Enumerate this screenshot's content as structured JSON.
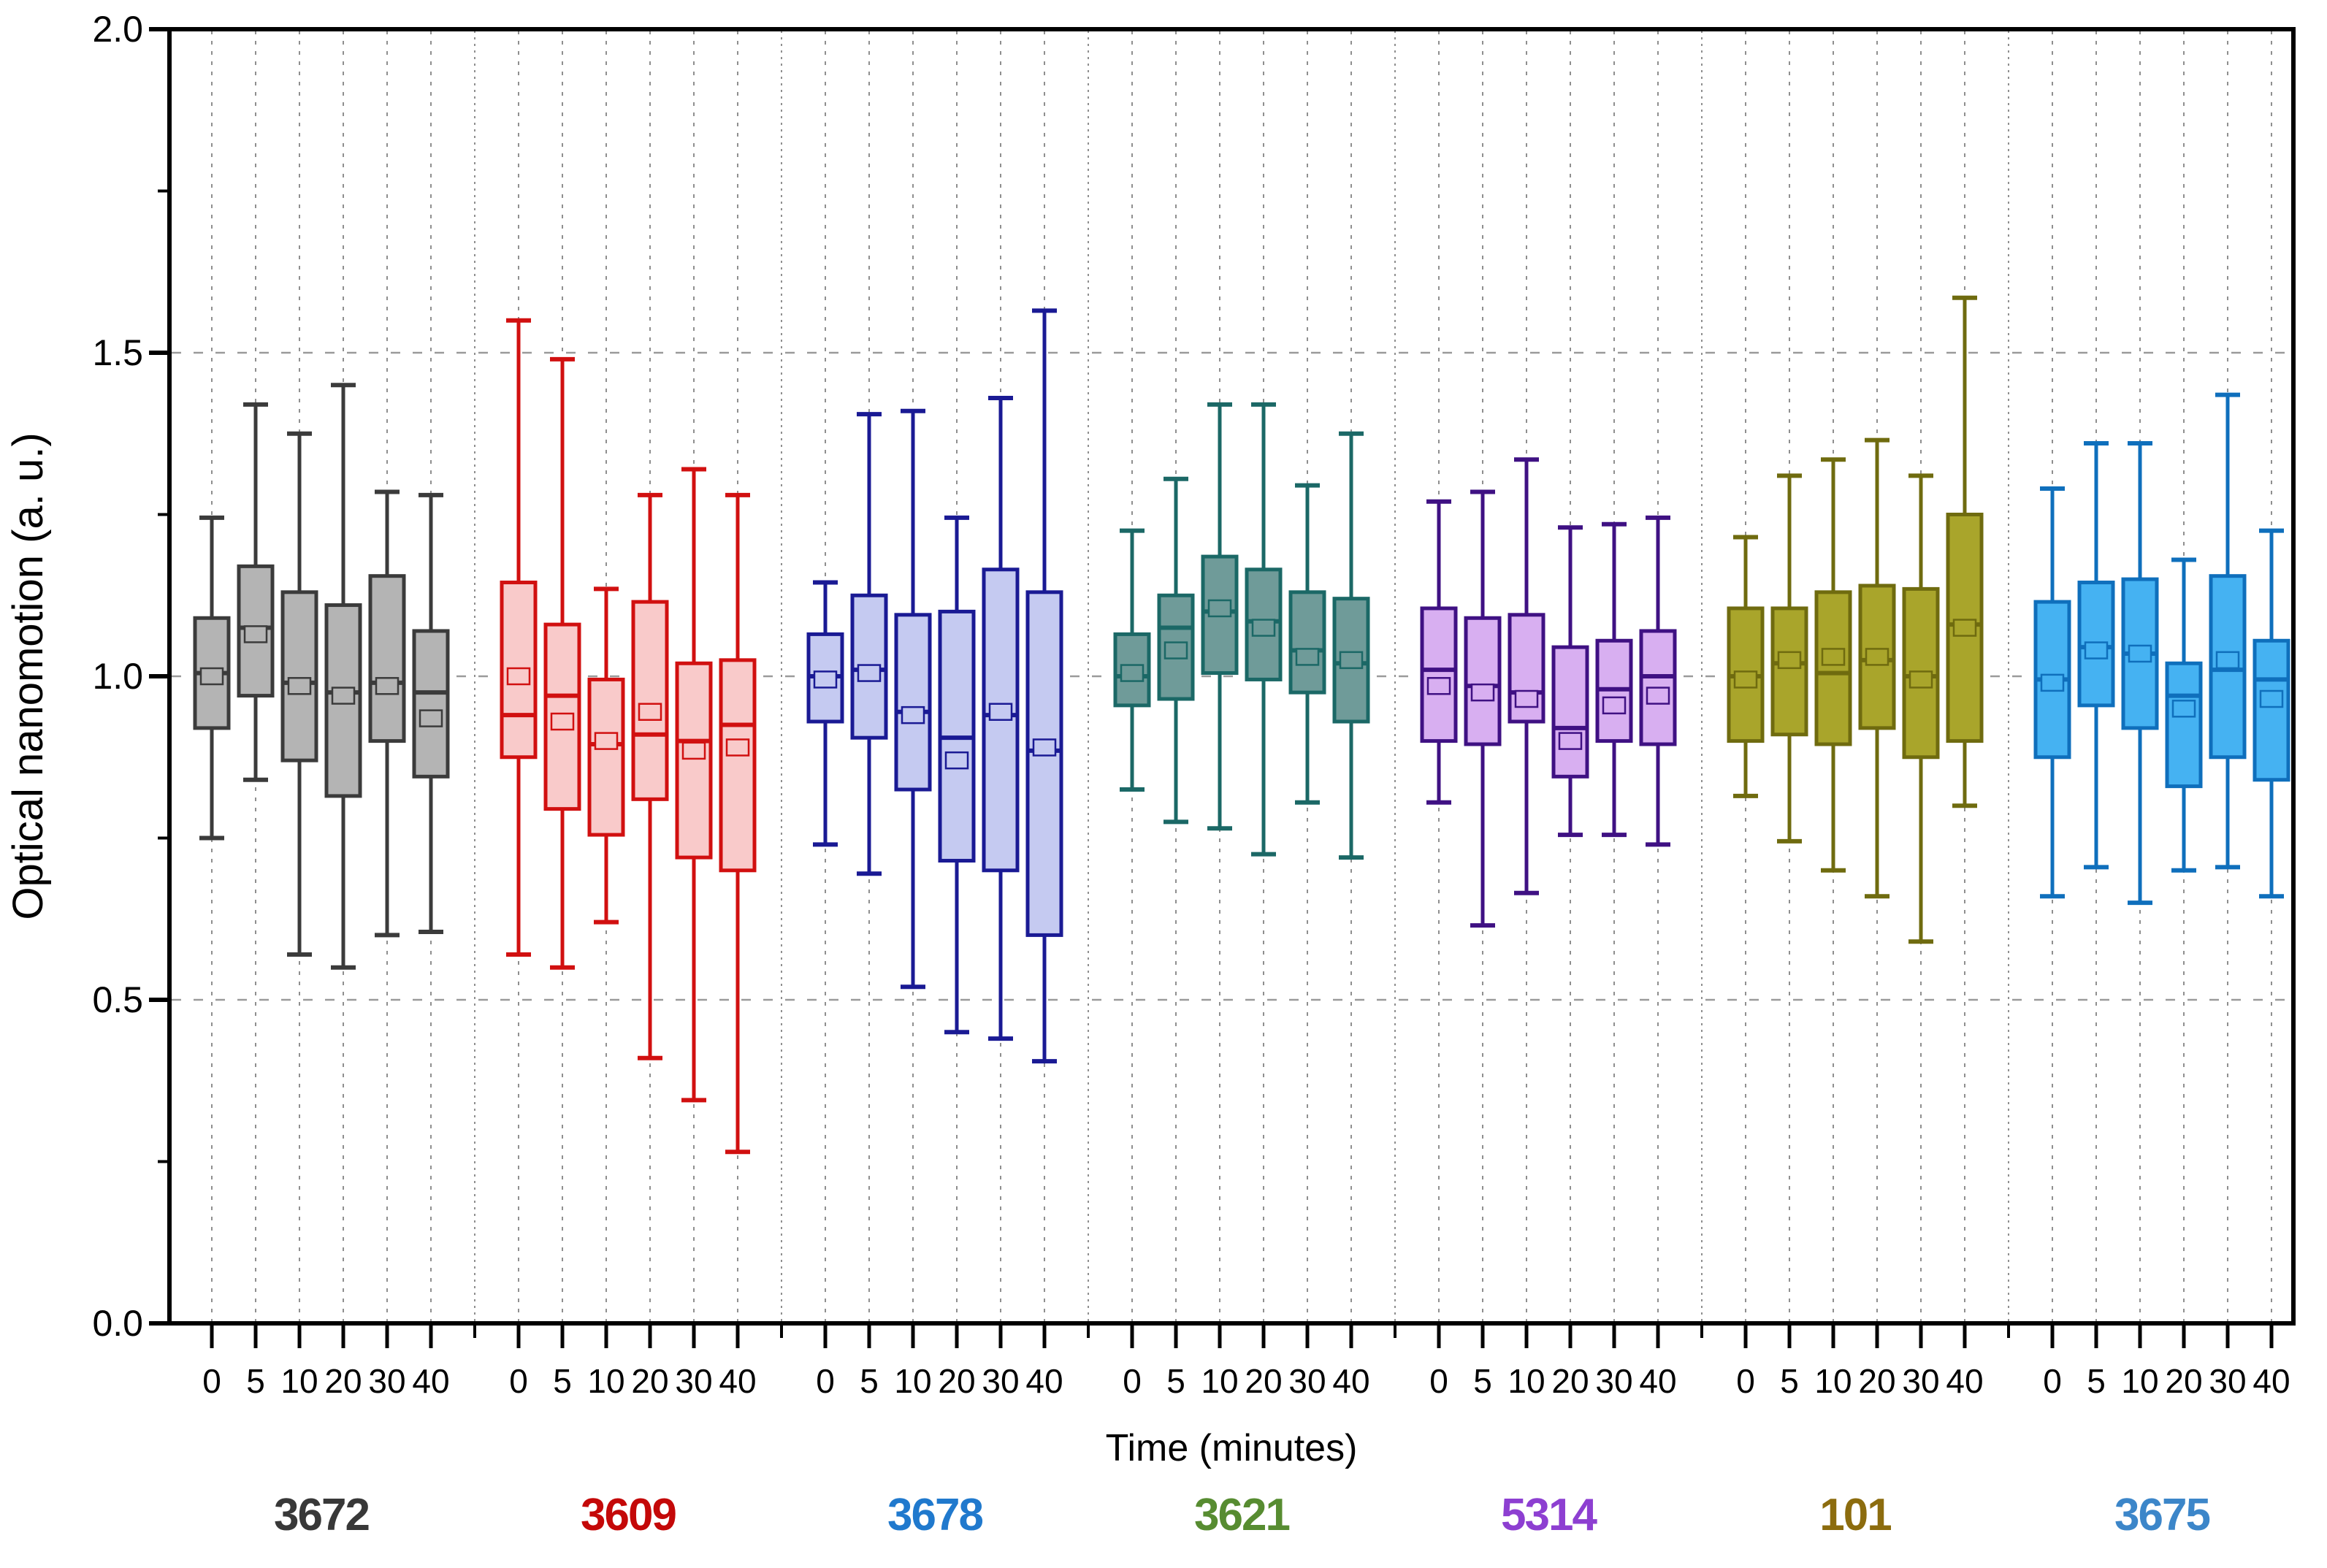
{
  "figure": {
    "background": "#ffffff",
    "frame_color": "#000000"
  },
  "chart_data": {
    "type": "boxplot",
    "title": "",
    "xlabel": "Time (minutes)",
    "ylabel": "Optical nanomotion (a. u.)",
    "ylim": [
      0.0,
      2.0
    ],
    "y_major_ticks": [
      0.0,
      0.5,
      1.0,
      1.5,
      2.0
    ],
    "y_tick_labels": [
      "0.0",
      "0.5",
      "1.0",
      "1.5",
      "2.0"
    ],
    "y_minor_step": 0.25,
    "grid": {
      "horizontal_at": [
        0.5,
        1.0,
        1.5
      ],
      "vertical": "every box slot and group separator",
      "style": "dashed-gray"
    },
    "legend_position": "none",
    "time_points": [
      0,
      5,
      10,
      20,
      30,
      40
    ],
    "time_labels": [
      "0",
      "5",
      "10",
      "20",
      "30",
      "40"
    ],
    "box_stats_order": [
      "whisker_low",
      "q1",
      "median",
      "mean",
      "q3",
      "whisker_high"
    ],
    "groups": [
      {
        "id": "3672",
        "label_color": "#383838",
        "stroke": "#3b3b3b",
        "fill": "#b4b4b4",
        "boxes": [
          {
            "t": "0",
            "whisker_low": 0.75,
            "q1": 0.92,
            "median": 1.005,
            "mean": 1.0,
            "q3": 1.09,
            "whisker_high": 1.245
          },
          {
            "t": "5",
            "whisker_low": 0.84,
            "q1": 0.97,
            "median": 1.075,
            "mean": 1.065,
            "q3": 1.17,
            "whisker_high": 1.42
          },
          {
            "t": "10",
            "whisker_low": 0.57,
            "q1": 0.87,
            "median": 0.99,
            "mean": 0.985,
            "q3": 1.13,
            "whisker_high": 1.375
          },
          {
            "t": "20",
            "whisker_low": 0.55,
            "q1": 0.815,
            "median": 0.975,
            "mean": 0.97,
            "q3": 1.11,
            "whisker_high": 1.45
          },
          {
            "t": "30",
            "whisker_low": 0.6,
            "q1": 0.9,
            "median": 0.99,
            "mean": 0.985,
            "q3": 1.155,
            "whisker_high": 1.285
          },
          {
            "t": "40",
            "whisker_low": 0.605,
            "q1": 0.845,
            "median": 0.975,
            "mean": 0.935,
            "q3": 1.07,
            "whisker_high": 1.28
          }
        ]
      },
      {
        "id": "3609",
        "label_color": "#c40808",
        "stroke": "#d11010",
        "fill": "#f9caca",
        "boxes": [
          {
            "t": "0",
            "whisker_low": 0.57,
            "q1": 0.875,
            "median": 0.94,
            "mean": 1.0,
            "q3": 1.145,
            "whisker_high": 1.55
          },
          {
            "t": "5",
            "whisker_low": 0.55,
            "q1": 0.795,
            "median": 0.97,
            "mean": 0.93,
            "q3": 1.08,
            "whisker_high": 1.49
          },
          {
            "t": "10",
            "whisker_low": 0.62,
            "q1": 0.755,
            "median": 0.895,
            "mean": 0.9,
            "q3": 0.995,
            "whisker_high": 1.135
          },
          {
            "t": "20",
            "whisker_low": 0.41,
            "q1": 0.81,
            "median": 0.91,
            "mean": 0.945,
            "q3": 1.115,
            "whisker_high": 1.28
          },
          {
            "t": "30",
            "whisker_low": 0.345,
            "q1": 0.72,
            "median": 0.9,
            "mean": 0.885,
            "q3": 1.02,
            "whisker_high": 1.32
          },
          {
            "t": "40",
            "whisker_low": 0.265,
            "q1": 0.7,
            "median": 0.925,
            "mean": 0.89,
            "q3": 1.025,
            "whisker_high": 1.28
          }
        ]
      },
      {
        "id": "3678",
        "label_color": "#2079cd",
        "stroke": "#1a1a94",
        "fill": "#c5caf1",
        "boxes": [
          {
            "t": "0",
            "whisker_low": 0.74,
            "q1": 0.93,
            "median": 1.0,
            "mean": 0.995,
            "q3": 1.065,
            "whisker_high": 1.145
          },
          {
            "t": "5",
            "whisker_low": 0.695,
            "q1": 0.905,
            "median": 1.01,
            "mean": 1.005,
            "q3": 1.125,
            "whisker_high": 1.405
          },
          {
            "t": "10",
            "whisker_low": 0.52,
            "q1": 0.825,
            "median": 0.945,
            "mean": 0.94,
            "q3": 1.095,
            "whisker_high": 1.41
          },
          {
            "t": "20",
            "whisker_low": 0.45,
            "q1": 0.715,
            "median": 0.905,
            "mean": 0.87,
            "q3": 1.1,
            "whisker_high": 1.245
          },
          {
            "t": "30",
            "whisker_low": 0.44,
            "q1": 0.7,
            "median": 0.94,
            "mean": 0.945,
            "q3": 1.165,
            "whisker_high": 1.43
          },
          {
            "t": "40",
            "whisker_low": 0.405,
            "q1": 0.6,
            "median": 0.885,
            "mean": 0.89,
            "q3": 1.13,
            "whisker_high": 1.565
          }
        ]
      },
      {
        "id": "3621",
        "label_color": "#578c31",
        "stroke": "#1b6866",
        "fill": "#6f9b99",
        "boxes": [
          {
            "t": "0",
            "whisker_low": 0.825,
            "q1": 0.955,
            "median": 1.0,
            "mean": 1.005,
            "q3": 1.065,
            "whisker_high": 1.225
          },
          {
            "t": "5",
            "whisker_low": 0.775,
            "q1": 0.965,
            "median": 1.075,
            "mean": 1.04,
            "q3": 1.125,
            "whisker_high": 1.305
          },
          {
            "t": "10",
            "whisker_low": 0.765,
            "q1": 1.005,
            "median": 1.1,
            "mean": 1.105,
            "q3": 1.185,
            "whisker_high": 1.42
          },
          {
            "t": "20",
            "whisker_low": 0.725,
            "q1": 0.995,
            "median": 1.085,
            "mean": 1.075,
            "q3": 1.165,
            "whisker_high": 1.42
          },
          {
            "t": "30",
            "whisker_low": 0.805,
            "q1": 0.975,
            "median": 1.04,
            "mean": 1.03,
            "q3": 1.13,
            "whisker_high": 1.295
          },
          {
            "t": "40",
            "whisker_low": 0.72,
            "q1": 0.93,
            "median": 1.02,
            "mean": 1.025,
            "q3": 1.12,
            "whisker_high": 1.375
          }
        ]
      },
      {
        "id": "5314",
        "label_color": "#8d3fd1",
        "stroke": "#3f1183",
        "fill": "#d8aff1",
        "boxes": [
          {
            "t": "0",
            "whisker_low": 0.805,
            "q1": 0.9,
            "median": 1.01,
            "mean": 0.985,
            "q3": 1.105,
            "whisker_high": 1.27
          },
          {
            "t": "5",
            "whisker_low": 0.615,
            "q1": 0.895,
            "median": 0.985,
            "mean": 0.975,
            "q3": 1.09,
            "whisker_high": 1.285
          },
          {
            "t": "10",
            "whisker_low": 0.665,
            "q1": 0.93,
            "median": 0.975,
            "mean": 0.965,
            "q3": 1.095,
            "whisker_high": 1.335
          },
          {
            "t": "20",
            "whisker_low": 0.755,
            "q1": 0.845,
            "median": 0.92,
            "mean": 0.9,
            "q3": 1.045,
            "whisker_high": 1.23
          },
          {
            "t": "30",
            "whisker_low": 0.755,
            "q1": 0.9,
            "median": 0.98,
            "mean": 0.955,
            "q3": 1.055,
            "whisker_high": 1.235
          },
          {
            "t": "40",
            "whisker_low": 0.74,
            "q1": 0.895,
            "median": 1.0,
            "mean": 0.97,
            "q3": 1.07,
            "whisker_high": 1.245
          }
        ]
      },
      {
        "id": "101",
        "label_color": "#8c6c0e",
        "stroke": "#6f6b0f",
        "fill": "#a9a52b",
        "boxes": [
          {
            "t": "0",
            "whisker_low": 0.815,
            "q1": 0.9,
            "median": 1.0,
            "mean": 0.995,
            "q3": 1.105,
            "whisker_high": 1.215
          },
          {
            "t": "5",
            "whisker_low": 0.745,
            "q1": 0.91,
            "median": 1.02,
            "mean": 1.025,
            "q3": 1.105,
            "whisker_high": 1.31
          },
          {
            "t": "10",
            "whisker_low": 0.7,
            "q1": 0.895,
            "median": 1.005,
            "mean": 1.03,
            "q3": 1.13,
            "whisker_high": 1.335
          },
          {
            "t": "20",
            "whisker_low": 0.66,
            "q1": 0.92,
            "median": 1.025,
            "mean": 1.03,
            "q3": 1.14,
            "whisker_high": 1.365
          },
          {
            "t": "30",
            "whisker_low": 0.59,
            "q1": 0.875,
            "median": 1.0,
            "mean": 0.995,
            "q3": 1.135,
            "whisker_high": 1.31
          },
          {
            "t": "40",
            "whisker_low": 0.8,
            "q1": 0.9,
            "median": 1.08,
            "mean": 1.075,
            "q3": 1.25,
            "whisker_high": 1.585
          }
        ]
      },
      {
        "id": "3675",
        "label_color": "#3c86c9",
        "stroke": "#0f6fbc",
        "fill": "#45b2f2",
        "boxes": [
          {
            "t": "0",
            "whisker_low": 0.66,
            "q1": 0.875,
            "median": 0.995,
            "mean": 0.99,
            "q3": 1.115,
            "whisker_high": 1.29
          },
          {
            "t": "5",
            "whisker_low": 0.705,
            "q1": 0.955,
            "median": 1.045,
            "mean": 1.04,
            "q3": 1.145,
            "whisker_high": 1.36
          },
          {
            "t": "10",
            "whisker_low": 0.65,
            "q1": 0.92,
            "median": 1.035,
            "mean": 1.035,
            "q3": 1.15,
            "whisker_high": 1.36
          },
          {
            "t": "20",
            "whisker_low": 0.7,
            "q1": 0.83,
            "median": 0.97,
            "mean": 0.95,
            "q3": 1.02,
            "whisker_high": 1.18
          },
          {
            "t": "30",
            "whisker_low": 0.705,
            "q1": 0.875,
            "median": 1.01,
            "mean": 1.025,
            "q3": 1.155,
            "whisker_high": 1.435
          },
          {
            "t": "40",
            "whisker_low": 0.66,
            "q1": 0.84,
            "median": 0.995,
            "mean": 0.965,
            "q3": 1.055,
            "whisker_high": 1.225
          }
        ]
      }
    ]
  }
}
